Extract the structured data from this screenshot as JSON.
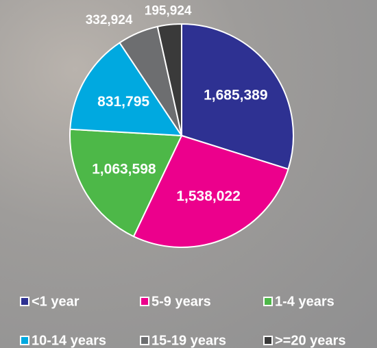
{
  "chart_data": {
    "type": "pie",
    "categories": [
      "<1 year",
      "5-9 years",
      "1-4 years",
      "10-14 years",
      "15-19 years",
      ">=20 years"
    ],
    "values": [
      1685389,
      1538022,
      1063598,
      831795,
      332924,
      195924
    ],
    "value_labels": [
      "1,685,389",
      "1,538,022",
      "1,063,598",
      "831,795",
      "332,924",
      "195,924"
    ],
    "colors": [
      "#2e3192",
      "#ec008c",
      "#4db848",
      "#00a9e0",
      "#6d6e70",
      "#3a3a3a"
    ]
  }
}
